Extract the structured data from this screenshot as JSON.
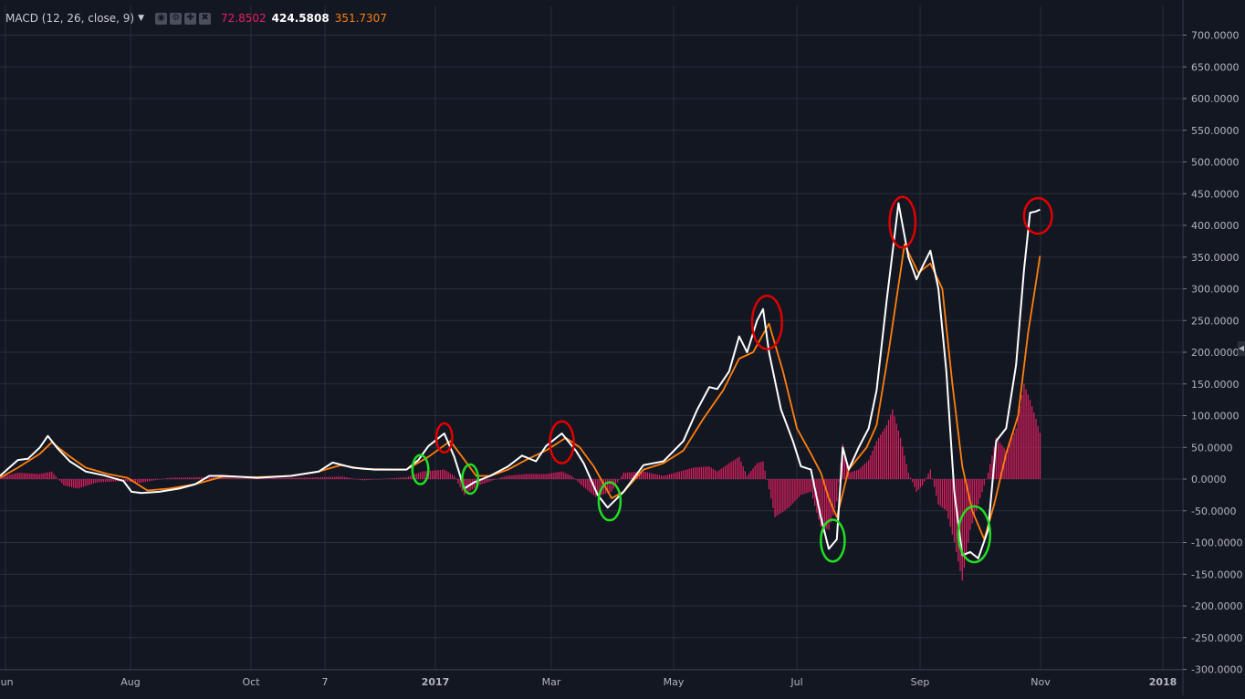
{
  "indicator": {
    "title": "MACD (12, 26, close, 9)",
    "dropdown_icon": "caret-down-icon",
    "icons": [
      "eye-icon",
      "gear-icon",
      "plus-icon",
      "close-icon"
    ],
    "values": [
      {
        "text": "72.8502",
        "color": "#e91e63"
      },
      {
        "text": "424.5808",
        "color": "#ffffff"
      },
      {
        "text": "351.7307",
        "color": "#ff7f0e"
      }
    ]
  },
  "colors": {
    "background": "#131722",
    "grid": "#2a2e39",
    "macd": "#ffffff",
    "signal": "#ff7f0e",
    "histogram": "#e91e63",
    "peak_marker": "#e00000",
    "trough_marker": "#22dd22"
  },
  "chart_data": {
    "type": "line",
    "xlabels": [
      "Jun",
      "Aug",
      "Oct",
      "7",
      "2017",
      "Mar",
      "May",
      "Jul",
      "Sep",
      "Nov",
      "2018"
    ],
    "ylabels": [
      "700.0000",
      "650.0000",
      "600.0000",
      "550.0000",
      "500.0000",
      "450.0000",
      "400.0000",
      "350.0000",
      "300.0000",
      "250.0000",
      "200.0000",
      "150.0000",
      "100.0000",
      "50.0000",
      "0.0000",
      "-50.0000",
      "-100.0000",
      "-150.0000",
      "-200.0000",
      "-250.0000",
      "-300.0000"
    ],
    "ylim": [
      -300,
      720
    ],
    "x_start": "2016-05-27",
    "x_end": "2018-01-08",
    "series": [
      {
        "name": "MACD",
        "points": [
          [
            "2016-05-27",
            5
          ],
          [
            "2016-06-05",
            30
          ],
          [
            "2016-06-10",
            32
          ],
          [
            "2016-06-16",
            50
          ],
          [
            "2016-06-20",
            68
          ],
          [
            "2016-06-25",
            48
          ],
          [
            "2016-07-01",
            28
          ],
          [
            "2016-07-09",
            12
          ],
          [
            "2016-07-18",
            6
          ],
          [
            "2016-07-28",
            -3
          ],
          [
            "2016-08-01",
            -20
          ],
          [
            "2016-08-06",
            -22
          ],
          [
            "2016-08-15",
            -20
          ],
          [
            "2016-08-25",
            -15
          ],
          [
            "2016-09-02",
            -8
          ],
          [
            "2016-09-09",
            5
          ],
          [
            "2016-09-16",
            5
          ],
          [
            "2016-10-03",
            2
          ],
          [
            "2016-10-20",
            5
          ],
          [
            "2016-11-03",
            12
          ],
          [
            "2016-11-10",
            26
          ],
          [
            "2016-11-20",
            18
          ],
          [
            "2016-12-01",
            15
          ],
          [
            "2016-12-17",
            15
          ],
          [
            "2016-12-23",
            30
          ],
          [
            "2016-12-28",
            52
          ],
          [
            "2017-01-05",
            72
          ],
          [
            "2017-01-10",
            35
          ],
          [
            "2017-01-15",
            -15
          ],
          [
            "2017-01-20",
            -5
          ],
          [
            "2017-01-28",
            5
          ],
          [
            "2017-02-06",
            20
          ],
          [
            "2017-02-13",
            37
          ],
          [
            "2017-02-20",
            28
          ],
          [
            "2017-02-25",
            52
          ],
          [
            "2017-03-05",
            72
          ],
          [
            "2017-03-12",
            45
          ],
          [
            "2017-03-16",
            25
          ],
          [
            "2017-03-23",
            -25
          ],
          [
            "2017-03-28",
            -45
          ],
          [
            "2017-04-05",
            -20
          ],
          [
            "2017-04-15",
            22
          ],
          [
            "2017-04-25",
            28
          ],
          [
            "2017-05-05",
            60
          ],
          [
            "2017-05-12",
            110
          ],
          [
            "2017-05-18",
            145
          ],
          [
            "2017-05-22",
            142
          ],
          [
            "2017-05-28",
            170
          ],
          [
            "2017-06-02",
            225
          ],
          [
            "2017-06-06",
            200
          ],
          [
            "2017-06-11",
            250
          ],
          [
            "2017-06-14",
            268
          ],
          [
            "2017-06-17",
            200
          ],
          [
            "2017-06-23",
            110
          ],
          [
            "2017-06-29",
            60
          ],
          [
            "2017-07-03",
            20
          ],
          [
            "2017-07-08",
            15
          ],
          [
            "2017-07-13",
            -60
          ],
          [
            "2017-07-17",
            -110
          ],
          [
            "2017-07-21",
            -95
          ],
          [
            "2017-07-24",
            50
          ],
          [
            "2017-07-27",
            15
          ],
          [
            "2017-08-01",
            50
          ],
          [
            "2017-08-06",
            80
          ],
          [
            "2017-08-10",
            140
          ],
          [
            "2017-08-15",
            280
          ],
          [
            "2017-08-21",
            435
          ],
          [
            "2017-08-26",
            350
          ],
          [
            "2017-08-30",
            315
          ],
          [
            "2017-09-02",
            335
          ],
          [
            "2017-09-06",
            360
          ],
          [
            "2017-09-10",
            300
          ],
          [
            "2017-09-14",
            170
          ],
          [
            "2017-09-18",
            -20
          ],
          [
            "2017-09-22",
            -120
          ],
          [
            "2017-09-26",
            -115
          ],
          [
            "2017-09-30",
            -125
          ],
          [
            "2017-10-05",
            -80
          ],
          [
            "2017-10-09",
            60
          ],
          [
            "2017-10-14",
            80
          ],
          [
            "2017-10-19",
            180
          ],
          [
            "2017-10-23",
            330
          ],
          [
            "2017-10-26",
            420
          ],
          [
            "2017-10-29",
            422
          ],
          [
            "2017-10-31",
            425
          ]
        ]
      },
      {
        "name": "Signal",
        "points": [
          [
            "2016-05-27",
            2
          ],
          [
            "2016-06-05",
            18
          ],
          [
            "2016-06-16",
            40
          ],
          [
            "2016-06-22",
            58
          ],
          [
            "2016-06-30",
            38
          ],
          [
            "2016-07-09",
            18
          ],
          [
            "2016-07-20",
            8
          ],
          [
            "2016-07-30",
            2
          ],
          [
            "2016-08-09",
            -18
          ],
          [
            "2016-08-20",
            -15
          ],
          [
            "2016-09-02",
            -8
          ],
          [
            "2016-09-16",
            4
          ],
          [
            "2016-10-03",
            3
          ],
          [
            "2016-10-20",
            5
          ],
          [
            "2016-11-03",
            12
          ],
          [
            "2016-11-14",
            22
          ],
          [
            "2016-11-25",
            16
          ],
          [
            "2016-12-17",
            15
          ],
          [
            "2016-12-28",
            35
          ],
          [
            "2017-01-08",
            60
          ],
          [
            "2017-01-14",
            35
          ],
          [
            "2017-01-21",
            5
          ],
          [
            "2017-01-28",
            5
          ],
          [
            "2017-02-06",
            15
          ],
          [
            "2017-02-15",
            30
          ],
          [
            "2017-02-25",
            45
          ],
          [
            "2017-03-07",
            65
          ],
          [
            "2017-03-14",
            50
          ],
          [
            "2017-03-21",
            20
          ],
          [
            "2017-03-30",
            -30
          ],
          [
            "2017-04-05",
            -20
          ],
          [
            "2017-04-15",
            15
          ],
          [
            "2017-04-25",
            25
          ],
          [
            "2017-05-05",
            45
          ],
          [
            "2017-05-15",
            95
          ],
          [
            "2017-05-25",
            140
          ],
          [
            "2017-06-02",
            190
          ],
          [
            "2017-06-09",
            200
          ],
          [
            "2017-06-17",
            245
          ],
          [
            "2017-06-24",
            170
          ],
          [
            "2017-07-01",
            80
          ],
          [
            "2017-07-08",
            40
          ],
          [
            "2017-07-13",
            10
          ],
          [
            "2017-07-17",
            -30
          ],
          [
            "2017-07-21",
            -60
          ],
          [
            "2017-07-27",
            15
          ],
          [
            "2017-08-05",
            50
          ],
          [
            "2017-08-10",
            85
          ],
          [
            "2017-08-16",
            200
          ],
          [
            "2017-08-24",
            370
          ],
          [
            "2017-08-31",
            325
          ],
          [
            "2017-09-06",
            340
          ],
          [
            "2017-09-12",
            300
          ],
          [
            "2017-09-17",
            150
          ],
          [
            "2017-09-22",
            20
          ],
          [
            "2017-09-27",
            -50
          ],
          [
            "2017-10-03",
            -95
          ],
          [
            "2017-10-08",
            -40
          ],
          [
            "2017-10-14",
            40
          ],
          [
            "2017-10-20",
            100
          ],
          [
            "2017-10-25",
            230
          ],
          [
            "2017-10-29",
            310
          ],
          [
            "2017-10-31",
            352
          ]
        ]
      },
      {
        "name": "Histogram",
        "points": [
          [
            "2016-05-27",
            3
          ],
          [
            "2016-06-05",
            10
          ],
          [
            "2016-06-16",
            8
          ],
          [
            "2016-06-22",
            12
          ],
          [
            "2016-06-28",
            -10
          ],
          [
            "2016-07-05",
            -15
          ],
          [
            "2016-07-15",
            -5
          ],
          [
            "2016-07-28",
            -3
          ],
          [
            "2016-08-05",
            -6
          ],
          [
            "2016-08-20",
            2
          ],
          [
            "2016-09-05",
            3
          ],
          [
            "2016-10-01",
            1
          ],
          [
            "2016-11-05",
            3
          ],
          [
            "2016-11-15",
            4
          ],
          [
            "2016-11-25",
            -2
          ],
          [
            "2016-12-17",
            3
          ],
          [
            "2016-12-25",
            12
          ],
          [
            "2017-01-05",
            15
          ],
          [
            "2017-01-10",
            5
          ],
          [
            "2017-01-15",
            -25
          ],
          [
            "2017-01-22",
            -10
          ],
          [
            "2017-02-05",
            5
          ],
          [
            "2017-02-15",
            8
          ],
          [
            "2017-02-25",
            8
          ],
          [
            "2017-03-05",
            12
          ],
          [
            "2017-03-10",
            5
          ],
          [
            "2017-03-15",
            -10
          ],
          [
            "2017-03-22",
            -28
          ],
          [
            "2017-03-30",
            -20
          ],
          [
            "2017-04-05",
            10
          ],
          [
            "2017-04-15",
            12
          ],
          [
            "2017-04-25",
            5
          ],
          [
            "2017-05-10",
            18
          ],
          [
            "2017-05-18",
            20
          ],
          [
            "2017-05-22",
            12
          ],
          [
            "2017-05-28",
            25
          ],
          [
            "2017-06-02",
            35
          ],
          [
            "2017-06-06",
            5
          ],
          [
            "2017-06-11",
            25
          ],
          [
            "2017-06-14",
            28
          ],
          [
            "2017-06-20",
            -60
          ],
          [
            "2017-06-27",
            -45
          ],
          [
            "2017-07-03",
            -25
          ],
          [
            "2017-07-08",
            -20
          ],
          [
            "2017-07-13",
            -75
          ],
          [
            "2017-07-17",
            -80
          ],
          [
            "2017-07-21",
            -35
          ],
          [
            "2017-07-24",
            55
          ],
          [
            "2017-07-27",
            10
          ],
          [
            "2017-08-01",
            15
          ],
          [
            "2017-08-06",
            30
          ],
          [
            "2017-08-10",
            60
          ],
          [
            "2017-08-15",
            85
          ],
          [
            "2017-08-18",
            110
          ],
          [
            "2017-08-22",
            65
          ],
          [
            "2017-08-26",
            10
          ],
          [
            "2017-08-30",
            -20
          ],
          [
            "2017-09-02",
            -10
          ],
          [
            "2017-09-06",
            15
          ],
          [
            "2017-09-10",
            -40
          ],
          [
            "2017-09-14",
            -50
          ],
          [
            "2017-09-18",
            -100
          ],
          [
            "2017-09-22",
            -160
          ],
          [
            "2017-09-26",
            -80
          ],
          [
            "2017-09-30",
            -40
          ],
          [
            "2017-10-05",
            10
          ],
          [
            "2017-10-09",
            65
          ],
          [
            "2017-10-14",
            45
          ],
          [
            "2017-10-19",
            80
          ],
          [
            "2017-10-23",
            150
          ],
          [
            "2017-10-26",
            125
          ],
          [
            "2017-10-29",
            95
          ],
          [
            "2017-10-31",
            73
          ]
        ]
      }
    ],
    "annotations": [
      {
        "type": "peak",
        "x": "2017-01-05",
        "y": 65,
        "rx_days": 4,
        "ry_value": 23
      },
      {
        "type": "trough",
        "x": "2016-12-24",
        "y": 15,
        "rx_days": 4,
        "ry_value": 23
      },
      {
        "type": "trough",
        "x": "2017-01-18",
        "y": 0,
        "rx_days": 4,
        "ry_value": 23
      },
      {
        "type": "peak",
        "x": "2017-03-05",
        "y": 58,
        "rx_days": 6,
        "ry_value": 33
      },
      {
        "type": "trough",
        "x": "2017-03-29",
        "y": -35,
        "rx_days": 5.5,
        "ry_value": 30
      },
      {
        "type": "peak",
        "x": "2017-06-16",
        "y": 247,
        "rx_days": 7.5,
        "ry_value": 42
      },
      {
        "type": "trough",
        "x": "2017-07-19",
        "y": -97,
        "rx_days": 6,
        "ry_value": 33
      },
      {
        "type": "peak",
        "x": "2017-08-23",
        "y": 405,
        "rx_days": 6.5,
        "ry_value": 40
      },
      {
        "type": "trough",
        "x": "2017-09-28",
        "y": -87,
        "rx_days": 8,
        "ry_value": 44
      },
      {
        "type": "peak",
        "x": "2017-10-30",
        "y": 415,
        "rx_days": 7,
        "ry_value": 28
      }
    ]
  }
}
